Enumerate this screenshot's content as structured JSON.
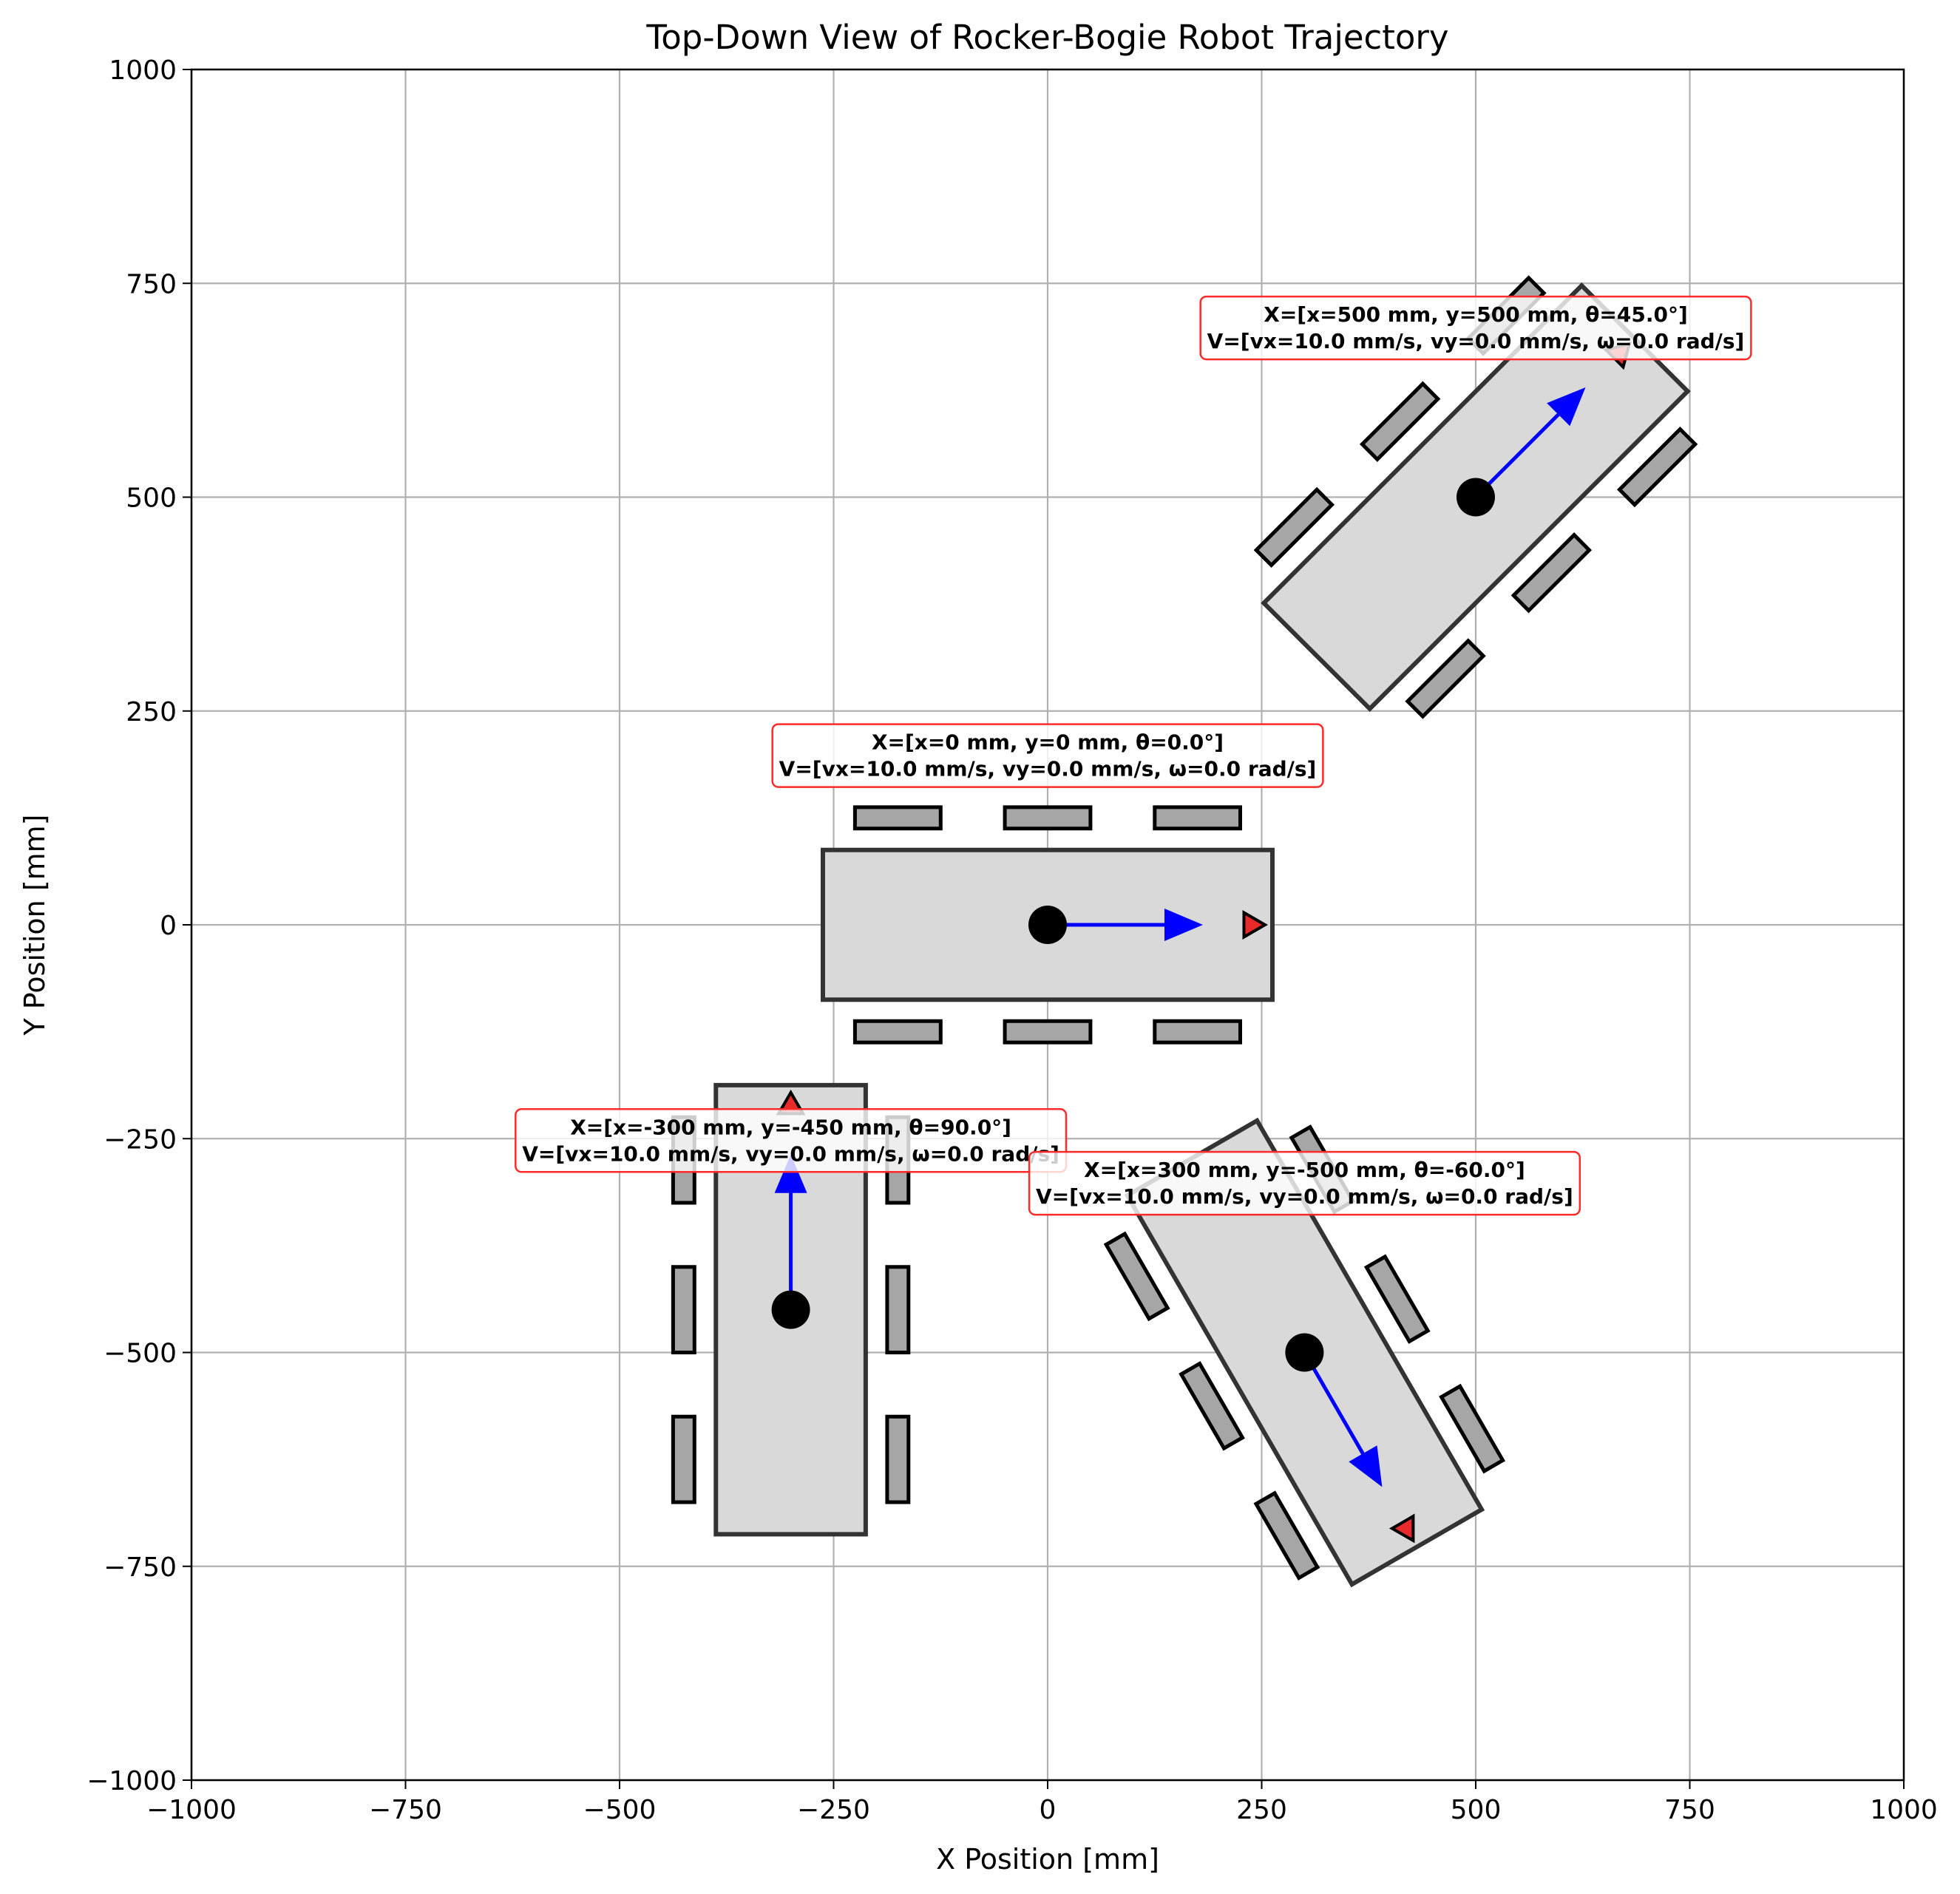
{
  "chart_data": {
    "type": "scatter",
    "title": "Top-Down View of Rocker-Bogie Robot Trajectory",
    "xlabel": "X Position [mm]",
    "ylabel": "Y Position [mm]",
    "xlim": [
      -1000,
      1000
    ],
    "ylim": [
      -1000,
      1000
    ],
    "xticks": [
      -1000,
      -750,
      -500,
      -250,
      0,
      250,
      500,
      750,
      1000
    ],
    "yticks": [
      -1000,
      -750,
      -500,
      -250,
      0,
      250,
      500,
      750,
      1000
    ],
    "grid": true,
    "robot_body": {
      "length_mm": 525,
      "width_mm": 175
    },
    "wheel": {
      "length_mm": 100,
      "width_mm": 25,
      "x_offsets_mm": [
        -175,
        0,
        175
      ],
      "y_offset_mm": 125
    },
    "robots": [
      {
        "x": 0,
        "y": 0,
        "theta_deg": 0.0,
        "vx": 10.0,
        "vy": 0.0,
        "omega": 0.0,
        "label_line1": "X=[x=0 mm, y=0 mm, θ=0.0°]",
        "label_line2": "V=[vx=10.0 mm/s, vy=0.0 mm/s, ω=0.0 rad/s]"
      },
      {
        "x": 500,
        "y": 500,
        "theta_deg": 45.0,
        "vx": 10.0,
        "vy": 0.0,
        "omega": 0.0,
        "label_line1": "X=[x=500 mm, y=500 mm, θ=45.0°]",
        "label_line2": "V=[vx=10.0 mm/s, vy=0.0 mm/s, ω=0.0 rad/s]"
      },
      {
        "x": -300,
        "y": -450,
        "theta_deg": 90.0,
        "vx": 10.0,
        "vy": 0.0,
        "omega": 0.0,
        "label_line1": "X=[x=-300 mm, y=-450 mm, θ=90.0°]",
        "label_line2": "V=[vx=10.0 mm/s, vy=0.0 mm/s, ω=0.0 rad/s]"
      },
      {
        "x": 300,
        "y": -500,
        "theta_deg": -60.0,
        "vx": 10.0,
        "vy": 0.0,
        "omega": 0.0,
        "label_line1": "X=[x=300 mm, y=-500 mm, θ=-60.0°]",
        "label_line2": "V=[vx=10.0 mm/s, vy=0.0 mm/s, ω=0.0 rad/s]"
      }
    ],
    "colors": {
      "body_fill": "#d9d9d9",
      "body_stroke": "#333333",
      "wheel_fill": "#a6a6a6",
      "wheel_stroke": "#000000",
      "center": "#000000",
      "velocity_arrow": "#0000ff",
      "heading_marker": "#e82a2a",
      "label_border": "#ff2a2a",
      "grid": "#b0b0b0"
    }
  }
}
